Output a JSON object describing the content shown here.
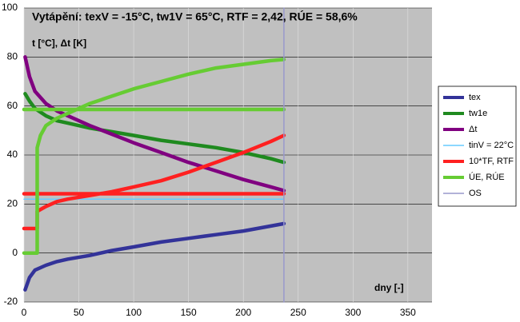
{
  "chart_data": {
    "type": "line",
    "title": "Vytápění: texV = -15°C, tw1V = 65°C, RTF = 2,42, RÚE = 58,6%",
    "y_label": "t [°C], Δt [K]",
    "x_label": "dny [-]",
    "xlim": [
      0,
      372
    ],
    "xticks": [
      0,
      50,
      100,
      150,
      200,
      250,
      300,
      350
    ],
    "ylim": [
      -20,
      100
    ],
    "yticks": [
      -20,
      0,
      20,
      40,
      60,
      80,
      100
    ],
    "grid": true,
    "legend": "right",
    "series": [
      {
        "name": "tex",
        "color": "#333399",
        "x": [
          1,
          5,
          10,
          20,
          30,
          40,
          60,
          80,
          100,
          125,
          150,
          175,
          200,
          225,
          237
        ],
        "values": [
          -15,
          -10,
          -7,
          -5,
          -3.5,
          -2.5,
          -1,
          1,
          2.5,
          4.5,
          6,
          7.5,
          9,
          11,
          12
        ]
      },
      {
        "name": "tw1e",
        "color": "#1f8a1f",
        "x": [
          1,
          5,
          10,
          20,
          30,
          40,
          60,
          80,
          100,
          125,
          150,
          175,
          200,
          225,
          237
        ],
        "values": [
          65,
          62,
          59,
          56,
          54,
          53,
          51,
          49.5,
          48,
          46,
          44.5,
          43,
          41,
          38.5,
          37
        ]
      },
      {
        "name": "Δt",
        "color": "#800080",
        "x": [
          1,
          5,
          10,
          20,
          30,
          40,
          60,
          80,
          100,
          125,
          150,
          175,
          200,
          225,
          237
        ],
        "values": [
          80,
          72,
          66,
          61,
          58,
          56,
          52,
          48.5,
          45,
          41,
          37,
          33.5,
          30,
          27,
          25.5
        ]
      },
      {
        "name": "tinV = 22°C",
        "color": "#66ccff",
        "x": [
          0,
          237
        ],
        "values": [
          22,
          22
        ]
      },
      {
        "name": "10*TF, RTF",
        "color": "#ff2020",
        "x": [
          0,
          12,
          12,
          20,
          30,
          40,
          60,
          80,
          100,
          125,
          150,
          175,
          200,
          225,
          237,
          null,
          0,
          237
        ],
        "values": [
          10,
          10,
          17,
          19,
          21,
          22,
          23.5,
          25,
          27,
          29.5,
          33,
          37,
          41,
          45.5,
          48,
          null,
          24.2,
          24.2
        ]
      },
      {
        "name": "ÚE, RÚE",
        "color": "#66cc33",
        "x": [
          0,
          12,
          12,
          15,
          20,
          30,
          40,
          60,
          80,
          100,
          125,
          150,
          175,
          200,
          225,
          237,
          null,
          0,
          237
        ],
        "values": [
          0,
          0,
          43,
          48,
          52,
          55,
          57,
          61,
          64,
          67,
          70,
          73,
          75.5,
          77,
          78.5,
          79,
          null,
          58.6,
          58.6
        ]
      },
      {
        "name": "OS",
        "color": "#9999cc",
        "x": [
          237,
          237
        ],
        "values": [
          -20,
          100
        ]
      }
    ]
  }
}
